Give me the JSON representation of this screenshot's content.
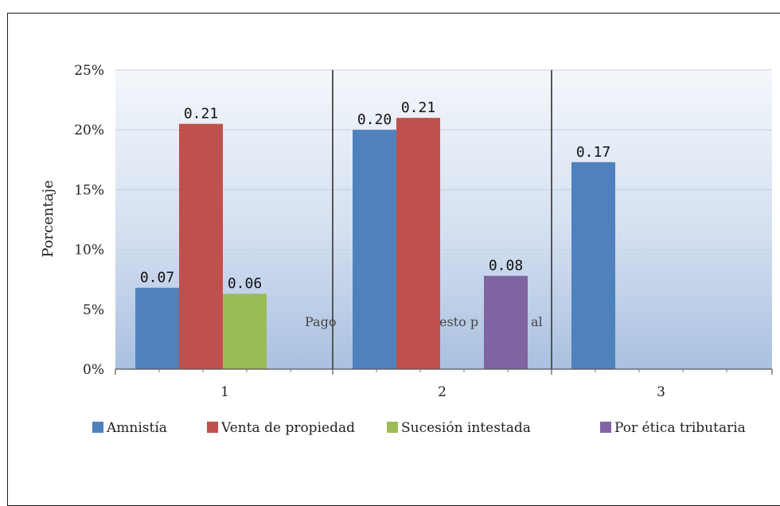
{
  "chart_data": {
    "type": "bar",
    "title": "",
    "xlabel": "",
    "ylabel": "Porcentaje",
    "categories": [
      "1",
      "2",
      "3"
    ],
    "ylim": [
      0,
      0.25
    ],
    "yticks": [
      "0%",
      "5%",
      "10%",
      "15%",
      "20%",
      "25%"
    ],
    "series": [
      {
        "name": "Amnistía",
        "color": "#4f81bd",
        "values": [
          0.068,
          0.2,
          0.173
        ],
        "labels": [
          "0.07",
          "0.20",
          "0.17"
        ]
      },
      {
        "name": "Venta de propiedad",
        "color": "#c0504d",
        "values": [
          0.205,
          0.21,
          null
        ],
        "labels": [
          "0.21",
          "0.21",
          null
        ]
      },
      {
        "name": "Sucesión intestada",
        "color": "#9bbb59",
        "values": [
          0.063,
          null,
          null
        ],
        "labels": [
          "0.06",
          null,
          null
        ]
      },
      {
        "name": "Por ética tributaria",
        "color": "#8064a2",
        "values": [
          null,
          0.078,
          null
        ],
        "labels": [
          null,
          "0.08",
          null
        ]
      }
    ],
    "overlay_text": [
      "Pago",
      "esto p",
      "al"
    ],
    "grid": true,
    "legend_position": "bottom"
  }
}
